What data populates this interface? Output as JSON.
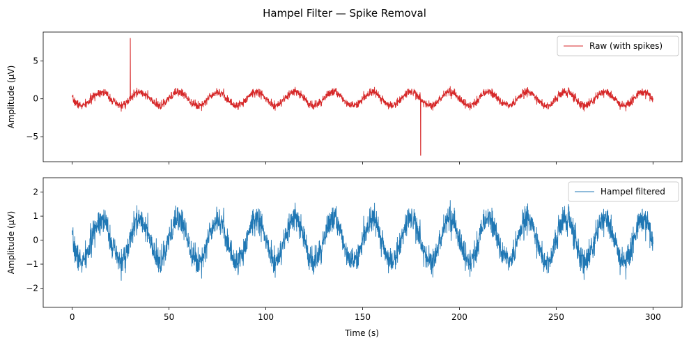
{
  "chart_data": {
    "title": "Hampel Filter — Spike Removal",
    "xlabel": "Time (s)",
    "x_ticks": [
      0,
      50,
      100,
      150,
      200,
      250,
      300
    ],
    "xlim": [
      -15,
      315
    ],
    "panels": [
      {
        "type": "line",
        "name": "Raw (with spikes)",
        "legend": "Raw (with spikes)",
        "legend_position": "upper-right",
        "ylabel": "Amplitude (µV)",
        "color": "#d62728",
        "ylim": [
          -8.3,
          8.8
        ],
        "y_ticks": [
          {
            "value": 5,
            "label": "5"
          },
          {
            "value": 0,
            "label": "0"
          },
          {
            "value": -5,
            "label": "−5"
          }
        ],
        "show_x_tick_labels": false,
        "signal": {
          "x_range": [
            0,
            300
          ],
          "waveform": "sine",
          "amplitude": 0.9,
          "period_s": 20,
          "phase_start": "minimum-crossing",
          "noise_sd": 0.28,
          "seed": 7
        },
        "spikes": [
          {
            "x": 30,
            "y": 8.0
          },
          {
            "x": 180,
            "y": -7.5
          }
        ]
      },
      {
        "type": "line",
        "name": "Hampel filtered",
        "legend": "Hampel filtered",
        "legend_position": "upper-right",
        "ylabel": "Amplitude (µV)",
        "color": "#1f77b4",
        "ylim": [
          -2.8,
          2.6
        ],
        "y_ticks": [
          {
            "value": 2,
            "label": "2"
          },
          {
            "value": 1,
            "label": "1"
          },
          {
            "value": 0,
            "label": "0"
          },
          {
            "value": -1,
            "label": "−1"
          },
          {
            "value": -2,
            "label": "−2"
          }
        ],
        "show_x_tick_labels": true,
        "signal": {
          "x_range": [
            0,
            300
          ],
          "waveform": "sine",
          "amplitude": 0.9,
          "period_s": 20,
          "phase_start": "minimum-crossing",
          "noise_sd": 0.28,
          "seed": 7
        },
        "spikes": []
      }
    ]
  }
}
